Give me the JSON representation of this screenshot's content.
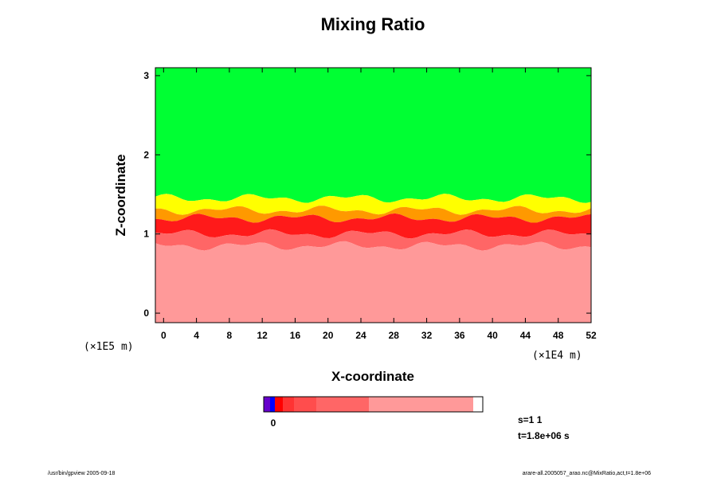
{
  "chart_data": {
    "type": "heatmap",
    "title": "Mixing Ratio",
    "xlabel": "X-coordinate",
    "ylabel": "Z-coordinate",
    "x_scale_label": "(×1E4 m)",
    "y_scale_label": "(×1E5 m)",
    "x_ticks": [
      0,
      4,
      8,
      12,
      16,
      20,
      24,
      28,
      32,
      36,
      40,
      44,
      48,
      52
    ],
    "y_ticks": [
      0,
      1,
      2,
      3
    ],
    "xlim": [
      -1,
      52
    ],
    "ylim": [
      -0.12,
      3.1
    ],
    "bands": [
      {
        "name": "upper",
        "color": "#00ff33",
        "from": 1.45,
        "to": 3.1
      },
      {
        "name": "yellow",
        "color": "#ffff00",
        "from": 1.3,
        "to": 1.45
      },
      {
        "name": "orange",
        "color": "#ff9900",
        "from": 1.2,
        "to": 1.3
      },
      {
        "name": "red",
        "color": "#ff1a1a",
        "from": 1.0,
        "to": 1.2
      },
      {
        "name": "pink-red",
        "color": "#ff6666",
        "from": 0.85,
        "to": 1.0
      },
      {
        "name": "lower",
        "color": "#ff9999",
        "from": -0.12,
        "to": 0.85
      }
    ],
    "colorbar": {
      "colors": [
        "#6600cc",
        "#0000ff",
        "#ff0000",
        "#ff3333",
        "#ff4d4d",
        "#ff6666",
        "#ff9999"
      ],
      "tick_label": "0"
    }
  },
  "info": {
    "step": "s=1 1",
    "time": "t=1.8e+06 s"
  },
  "footer": {
    "left": "/usr/bin/gpview 2005-09-18",
    "right": "arare-all.2005057_arao.nc@MixRatio,act,t=1.8e+06"
  }
}
